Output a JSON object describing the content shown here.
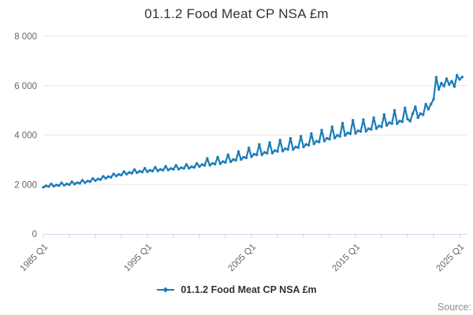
{
  "title": "01.1.2 Food Meat CP NSA £m",
  "legend": {
    "label": "01.1.2 Food Meat CP NSA £m"
  },
  "source_label": "Source:",
  "colors": {
    "series": "#1b7cb9",
    "grid": "#e6e6e6",
    "axis": "#ccd6eb",
    "tick_label": "#666666",
    "title_text": "#333333",
    "source_text": "#8c8c8c"
  },
  "chart_data": {
    "type": "line",
    "title": "01.1.2 Food Meat CP NSA £m",
    "frequency": "quarterly",
    "x_start": "1985 Q1",
    "x_end": "2025 Q2",
    "x_tick_labels": [
      "1985 Q1",
      "1995 Q1",
      "2005 Q1",
      "2015 Q1",
      "2025 Q1"
    ],
    "y_tick_labels": [
      "0",
      "2 000",
      "4 000",
      "6 000",
      "8 000"
    ],
    "y_tick_values": [
      0,
      2000,
      4000,
      6000,
      8000
    ],
    "ylim": [
      0,
      8000
    ],
    "grid": "horizontal",
    "legend_position": "bottom",
    "series": [
      {
        "name": "01.1.2 Food Meat CP NSA £m",
        "start_year": 1985,
        "period_years": 0.25,
        "values": [
          1890,
          1945,
          1915,
          2020,
          1930,
          1980,
          1955,
          2065,
          1965,
          2020,
          1995,
          2110,
          2015,
          2075,
          2050,
          2170,
          2075,
          2140,
          2115,
          2240,
          2155,
          2225,
          2195,
          2330,
          2250,
          2320,
          2290,
          2430,
          2345,
          2410,
          2380,
          2525,
          2420,
          2485,
          2455,
          2605,
          2475,
          2535,
          2505,
          2655,
          2515,
          2575,
          2545,
          2700,
          2550,
          2610,
          2580,
          2735,
          2585,
          2645,
          2615,
          2775,
          2620,
          2680,
          2650,
          2810,
          2655,
          2720,
          2690,
          2855,
          2725,
          2805,
          2770,
          3055,
          2775,
          2855,
          2825,
          3105,
          2840,
          2925,
          2895,
          3200,
          2920,
          3010,
          2980,
          3330,
          3010,
          3105,
          3075,
          3480,
          3120,
          3230,
          3195,
          3620,
          3200,
          3300,
          3265,
          3700,
          3270,
          3375,
          3340,
          3800,
          3350,
          3450,
          3415,
          3870,
          3420,
          3520,
          3490,
          3950,
          3520,
          3625,
          3590,
          4060,
          3640,
          3750,
          3715,
          4200,
          3760,
          3870,
          3830,
          4330,
          3880,
          3990,
          3950,
          4480,
          3980,
          4090,
          4050,
          4600,
          4070,
          4180,
          4145,
          4620,
          4150,
          4260,
          4225,
          4700,
          4260,
          4370,
          4335,
          4830,
          4390,
          4500,
          4465,
          5000,
          4460,
          4570,
          4540,
          5100,
          4650,
          4560,
          4870,
          5150,
          4700,
          4870,
          4820,
          5250,
          5050,
          5250,
          5450,
          6340,
          5850,
          6100,
          5980,
          6280,
          6050,
          6180,
          5960,
          6420,
          6250,
          6350
        ]
      }
    ]
  }
}
